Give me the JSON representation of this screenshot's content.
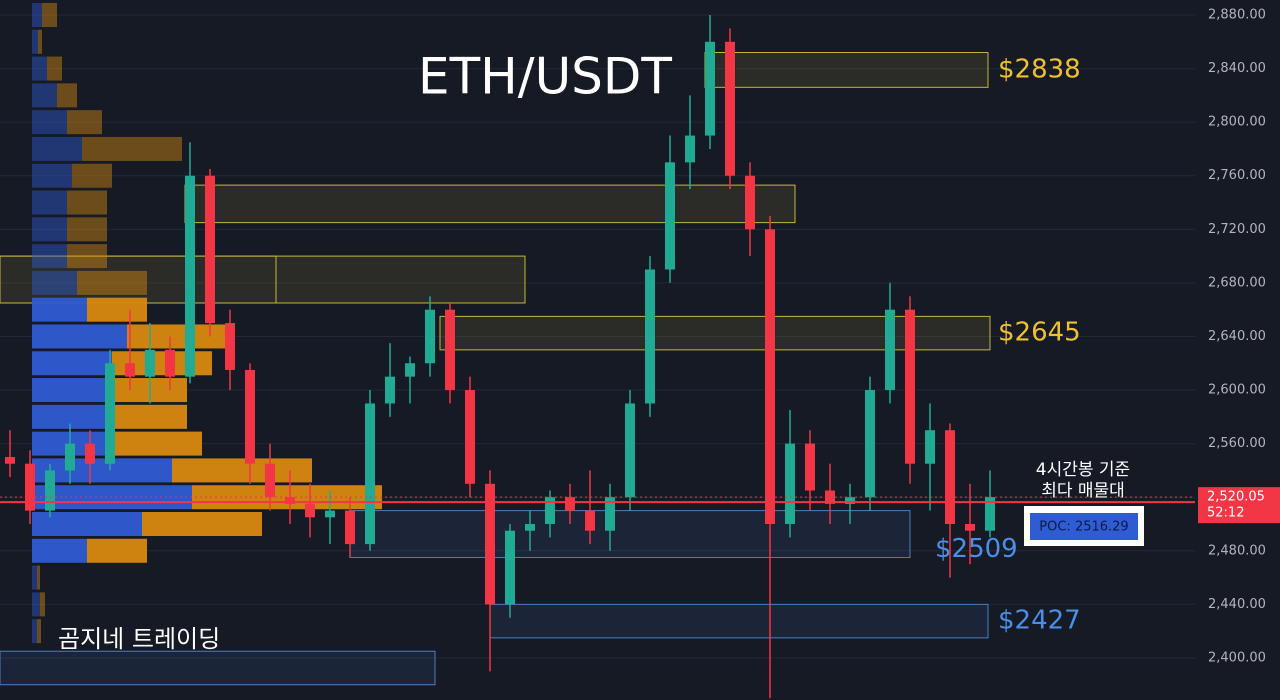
{
  "chart_data": {
    "type": "candlestick",
    "title": "ETH/USDT",
    "watermark": "곰지네 트레이딩",
    "up_color": "#22ab94",
    "down_color": "#f23645",
    "ylim": [
      2368.6,
      2891.2
    ],
    "yticks": [
      {
        "value": 2880,
        "label": "2,880.00"
      },
      {
        "value": 2840,
        "label": "2,840.00"
      },
      {
        "value": 2800,
        "label": "2,800.00"
      },
      {
        "value": 2760,
        "label": "2,760.00"
      },
      {
        "value": 2720,
        "label": "2,720.00"
      },
      {
        "value": 2680,
        "label": "2,680.00"
      },
      {
        "value": 2640,
        "label": "2,640.00"
      },
      {
        "value": 2600,
        "label": "2,600.00"
      },
      {
        "value": 2560,
        "label": "2,560.00"
      },
      {
        "value": 2520,
        "label": "2,520.00"
      },
      {
        "value": 2480,
        "label": "2,480.00"
      },
      {
        "value": 2440,
        "label": "2,440.00"
      },
      {
        "value": 2400,
        "label": "2,400.00"
      }
    ],
    "grid": true,
    "ohlc": [
      [
        2550,
        2570,
        2535,
        2545
      ],
      [
        2545,
        2555,
        2500,
        2510
      ],
      [
        2510,
        2545,
        2505,
        2540
      ],
      [
        2540,
        2575,
        2530,
        2560
      ],
      [
        2560,
        2570,
        2530,
        2545
      ],
      [
        2545,
        2630,
        2540,
        2620
      ],
      [
        2620,
        2660,
        2600,
        2610
      ],
      [
        2610,
        2650,
        2590,
        2630
      ],
      [
        2630,
        2640,
        2600,
        2610
      ],
      [
        2610,
        2785,
        2605,
        2760
      ],
      [
        2760,
        2765,
        2640,
        2650
      ],
      [
        2650,
        2660,
        2600,
        2615
      ],
      [
        2615,
        2620,
        2530,
        2545
      ],
      [
        2545,
        2560,
        2510,
        2520
      ],
      [
        2520,
        2540,
        2500,
        2515
      ],
      [
        2515,
        2530,
        2490,
        2505
      ],
      [
        2505,
        2525,
        2485,
        2510
      ],
      [
        2510,
        2520,
        2475,
        2485
      ],
      [
        2485,
        2600,
        2480,
        2590
      ],
      [
        2590,
        2635,
        2580,
        2610
      ],
      [
        2610,
        2625,
        2590,
        2620
      ],
      [
        2620,
        2670,
        2610,
        2660
      ],
      [
        2660,
        2665,
        2590,
        2600
      ],
      [
        2600,
        2610,
        2520,
        2530
      ],
      [
        2530,
        2540,
        2390,
        2440
      ],
      [
        2440,
        2500,
        2430,
        2495
      ],
      [
        2495,
        2510,
        2480,
        2500
      ],
      [
        2500,
        2525,
        2490,
        2520
      ],
      [
        2520,
        2530,
        2500,
        2510
      ],
      [
        2510,
        2540,
        2485,
        2495
      ],
      [
        2495,
        2530,
        2480,
        2520
      ],
      [
        2520,
        2600,
        2510,
        2590
      ],
      [
        2590,
        2700,
        2580,
        2690
      ],
      [
        2690,
        2790,
        2680,
        2770
      ],
      [
        2770,
        2820,
        2750,
        2790
      ],
      [
        2790,
        2880,
        2780,
        2860
      ],
      [
        2860,
        2870,
        2750,
        2760
      ],
      [
        2760,
        2770,
        2700,
        2720
      ],
      [
        2720,
        2730,
        2370,
        2500
      ],
      [
        2500,
        2585,
        2490,
        2560
      ],
      [
        2560,
        2570,
        2510,
        2525
      ],
      [
        2525,
        2545,
        2500,
        2515
      ],
      [
        2515,
        2530,
        2500,
        2520
      ],
      [
        2520,
        2610,
        2510,
        2600
      ],
      [
        2600,
        2680,
        2590,
        2660
      ],
      [
        2660,
        2670,
        2530,
        2545
      ],
      [
        2545,
        2590,
        2510,
        2570
      ],
      [
        2570,
        2575,
        2460,
        2500
      ],
      [
        2500,
        2530,
        2470,
        2495
      ],
      [
        2495,
        2540,
        2490,
        2520.05
      ]
    ],
    "volume_profile": {
      "buy_color": "#2f5bd3",
      "sell_color": "#d8890f",
      "levels": [
        2880,
        2860,
        2840,
        2820,
        2800,
        2780,
        2760,
        2740,
        2720,
        2700,
        2680,
        2660,
        2640,
        2620,
        2600,
        2580,
        2560,
        2540,
        2520,
        2500,
        2480,
        2460,
        2440,
        2420
      ],
      "buy": [
        10,
        6,
        15,
        25,
        35,
        50,
        40,
        35,
        35,
        35,
        45,
        55,
        95,
        80,
        80,
        80,
        80,
        140,
        160,
        110,
        55,
        5,
        8,
        5
      ],
      "sell": [
        15,
        4,
        15,
        20,
        35,
        100,
        40,
        40,
        40,
        40,
        70,
        60,
        100,
        100,
        75,
        75,
        90,
        140,
        190,
        120,
        60,
        3,
        5,
        4
      ]
    },
    "zones": [
      {
        "low": 2826,
        "high": 2852,
        "color": "#c9b43a",
        "label": "$2838"
      },
      {
        "low": 2725,
        "high": 2753,
        "color": "#c9b43a"
      },
      {
        "low": 2665,
        "high": 2700,
        "color": "#c9b43a"
      },
      {
        "low": 2630,
        "high": 2655,
        "color": "#c9b43a",
        "label": "$2645"
      },
      {
        "low": 2475,
        "high": 2510,
        "color": "#4a7fc0",
        "label": "$2509"
      },
      {
        "low": 2415,
        "high": 2440,
        "color": "#4a7fc0",
        "label": "$2427"
      },
      {
        "low": 2380,
        "high": 2405,
        "color": "#4a7fc0"
      }
    ],
    "poc": 2516.29,
    "poc_label": "POC: 2516.29",
    "poc_note": [
      "4시간봉 기준",
      "최다 매물대"
    ],
    "last_price": 2520.05,
    "last_price_label": "2,520.05",
    "countdown": "52:12"
  }
}
